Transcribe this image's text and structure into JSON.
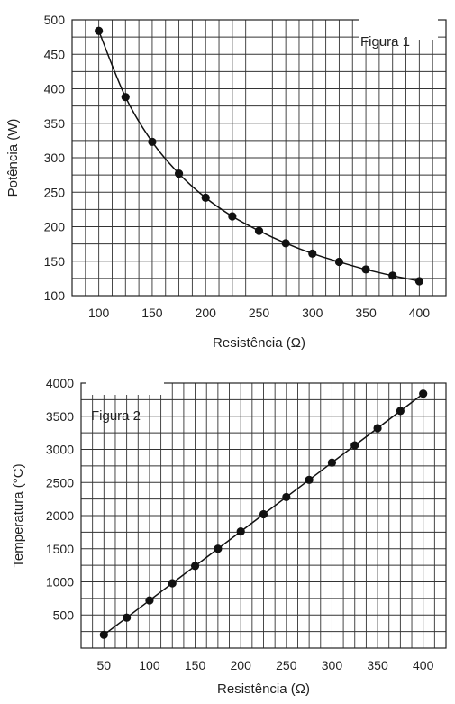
{
  "chart_data": [
    {
      "type": "scatter",
      "label": "Figura 1",
      "xlabel": "Resistência (Ω)",
      "ylabel": "Potência (W)",
      "xlim": [
        75,
        425
      ],
      "ylim": [
        100,
        500
      ],
      "xticks": [
        100,
        150,
        200,
        250,
        300,
        350,
        400
      ],
      "yticks": [
        100,
        150,
        200,
        250,
        300,
        350,
        400,
        450,
        500
      ],
      "grid": true,
      "curve": "smooth",
      "series": [
        {
          "x": [
            100,
            125,
            150,
            175,
            200,
            225,
            250,
            275,
            300,
            325,
            350,
            375,
            400
          ],
          "y": [
            484,
            388,
            323,
            277,
            242,
            215,
            194,
            176,
            161,
            149,
            138,
            129,
            121
          ]
        }
      ]
    },
    {
      "type": "scatter",
      "label": "Figura 2",
      "xlabel": "Resistência (Ω)",
      "ylabel": "Temperatura (°C)",
      "xlim": [
        25,
        425
      ],
      "ylim": [
        0,
        4000
      ],
      "xticks": [
        50,
        100,
        150,
        200,
        250,
        300,
        350,
        400
      ],
      "yticks": [
        500,
        1000,
        1500,
        2000,
        2500,
        3000,
        3500,
        4000
      ],
      "grid": true,
      "curve": "linear",
      "series": [
        {
          "x": [
            50,
            75,
            100,
            125,
            150,
            175,
            200,
            225,
            250,
            275,
            300,
            325,
            350,
            375,
            400
          ],
          "y": [
            200,
            460,
            720,
            980,
            1240,
            1500,
            1760,
            2020,
            2280,
            2540,
            2800,
            3060,
            3320,
            3580,
            3840
          ]
        }
      ]
    }
  ]
}
